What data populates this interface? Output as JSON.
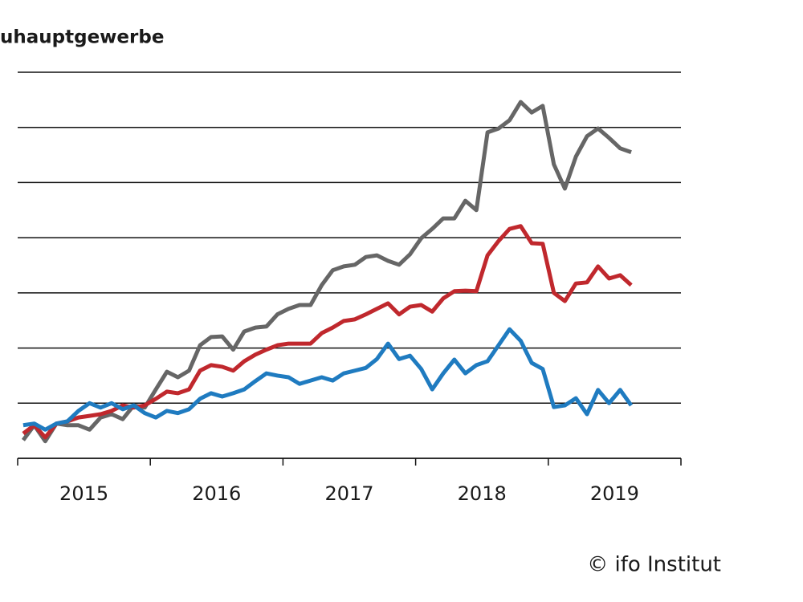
{
  "chart_data": {
    "type": "line",
    "title": "uhauptgewerbe",
    "source": "© ifo Institut",
    "x": [
      2015.042,
      2015.125,
      2015.208,
      2015.292,
      2015.375,
      2015.458,
      2015.542,
      2015.625,
      2015.708,
      2015.792,
      2015.875,
      2015.958,
      2016.042,
      2016.125,
      2016.208,
      2016.292,
      2016.375,
      2016.458,
      2016.542,
      2016.625,
      2016.708,
      2016.792,
      2016.875,
      2016.958,
      2017.042,
      2017.125,
      2017.208,
      2017.292,
      2017.375,
      2017.458,
      2017.542,
      2017.625,
      2017.708,
      2017.792,
      2017.875,
      2017.958,
      2018.042,
      2018.125,
      2018.208,
      2018.292,
      2018.375,
      2018.458,
      2018.542,
      2018.625,
      2018.708,
      2018.792,
      2018.875,
      2018.958,
      2019.042,
      2019.125,
      2019.208,
      2019.292,
      2019.375,
      2019.458,
      2019.542,
      2019.625
    ],
    "series": [
      {
        "color": "#666666",
        "values": [
          0.33,
          0.6,
          0.31,
          0.63,
          0.6,
          0.6,
          0.52,
          0.74,
          0.8,
          0.71,
          0.96,
          0.92,
          1.25,
          1.57,
          1.47,
          1.59,
          2.05,
          2.2,
          2.21,
          1.97,
          2.3,
          2.37,
          2.39,
          2.61,
          2.71,
          2.78,
          2.78,
          3.14,
          3.41,
          3.48,
          3.51,
          3.65,
          3.68,
          3.58,
          3.51,
          3.7,
          3.99,
          4.16,
          4.35,
          4.35,
          4.67,
          4.5,
          5.91,
          5.98,
          6.13,
          6.46,
          6.27,
          6.39,
          5.33,
          4.89,
          5.47,
          5.84,
          5.98,
          5.81,
          5.62,
          5.55
        ]
      },
      {
        "color": "#c0282d",
        "values": [
          0.45,
          0.6,
          0.38,
          0.63,
          0.67,
          0.74,
          0.77,
          0.8,
          0.86,
          0.96,
          0.92,
          0.96,
          1.08,
          1.21,
          1.18,
          1.25,
          1.59,
          1.69,
          1.66,
          1.59,
          1.76,
          1.88,
          1.97,
          2.05,
          2.08,
          2.08,
          2.08,
          2.27,
          2.37,
          2.49,
          2.52,
          2.61,
          2.71,
          2.81,
          2.61,
          2.75,
          2.78,
          2.66,
          2.9,
          3.03,
          3.04,
          3.03,
          3.68,
          3.94,
          4.16,
          4.21,
          3.9,
          3.89,
          3.0,
          2.85,
          3.17,
          3.19,
          3.48,
          3.26,
          3.32,
          3.14
        ]
      },
      {
        "color": "#1f7bc0",
        "values": [
          0.6,
          0.63,
          0.52,
          0.63,
          0.67,
          0.86,
          1.0,
          0.92,
          1.0,
          0.89,
          0.96,
          0.82,
          0.74,
          0.86,
          0.82,
          0.89,
          1.08,
          1.18,
          1.12,
          1.18,
          1.25,
          1.4,
          1.54,
          1.5,
          1.47,
          1.35,
          1.41,
          1.47,
          1.41,
          1.54,
          1.59,
          1.64,
          1.8,
          2.08,
          1.8,
          1.86,
          1.62,
          1.25,
          1.54,
          1.79,
          1.54,
          1.69,
          1.76,
          2.05,
          2.34,
          2.13,
          1.73,
          1.62,
          0.93,
          0.96,
          1.09,
          0.8,
          1.24,
          1.0,
          1.24,
          0.96
        ]
      }
    ],
    "xlim": [
      2015,
      2020
    ],
    "xticks": [
      {
        "value": 2015.5,
        "label": "2015"
      },
      {
        "value": 2016.5,
        "label": "2016"
      },
      {
        "value": 2017.5,
        "label": "2017"
      },
      {
        "value": 2018.5,
        "label": "2018"
      },
      {
        "value": 2019.5,
        "label": "2019"
      }
    ],
    "xticks_minor": [
      2015,
      2016,
      2017,
      2018,
      2019,
      2020
    ],
    "ylim": [
      0,
      7
    ],
    "yticks": [
      0,
      1,
      2,
      3,
      4,
      5,
      6,
      7
    ],
    "grid": true
  }
}
